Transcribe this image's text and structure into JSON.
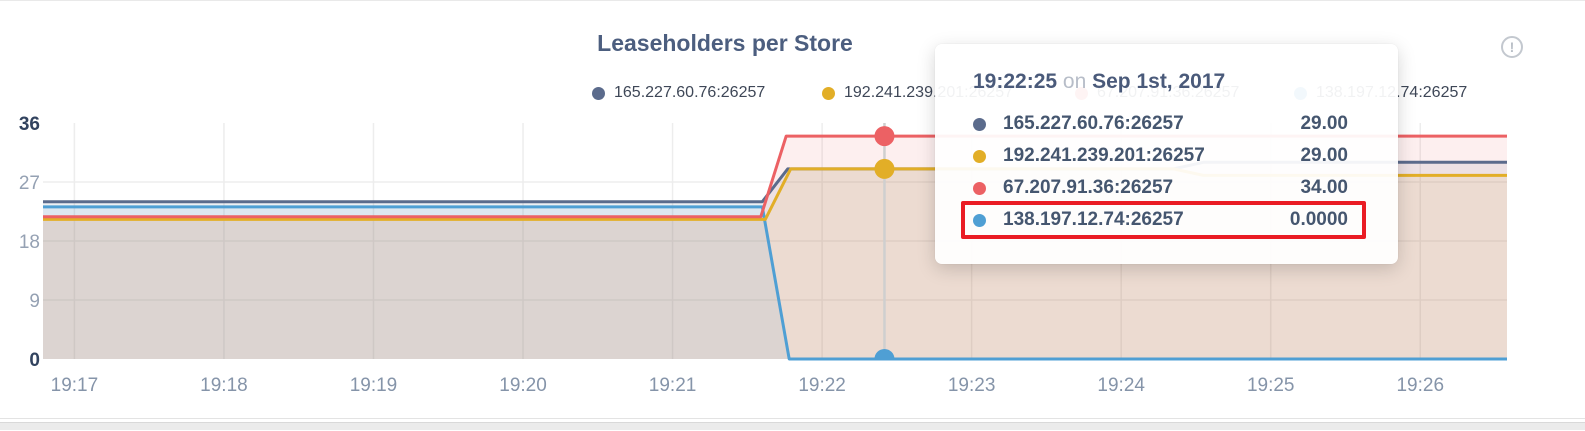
{
  "title": "Leaseholders per Store",
  "info_icon_glyph": "!",
  "chart_data": {
    "type": "area",
    "title": "Leaseholders per Store",
    "x_ticks": [
      "19:17",
      "19:18",
      "19:19",
      "19:20",
      "19:21",
      "19:22",
      "19:23",
      "19:24",
      "19:25",
      "19:26"
    ],
    "y_ticks": [
      36,
      27,
      18,
      9,
      0
    ],
    "y_grid": [
      27,
      18,
      9
    ],
    "ylim": [
      0,
      36
    ],
    "x_minutes_range": [
      16.79,
      26.58
    ],
    "grid_color": "#ededed",
    "series": [
      {
        "name": "165.227.60.76:26257",
        "color": "#5b6b8c",
        "points": [
          [
            16.79,
            24
          ],
          [
            21.6,
            24
          ],
          [
            21.77,
            29
          ],
          [
            24.35,
            29
          ],
          [
            24.55,
            30
          ],
          [
            26.58,
            30
          ]
        ]
      },
      {
        "name": "192.241.239.201:26257",
        "color": "#e2ae27",
        "points": [
          [
            16.79,
            21.3
          ],
          [
            21.62,
            21.3
          ],
          [
            21.79,
            29
          ],
          [
            24.35,
            29
          ],
          [
            24.55,
            28
          ],
          [
            26.58,
            28
          ]
        ]
      },
      {
        "name": "67.207.91.36:26257",
        "color": "#ec6164",
        "points": [
          [
            16.79,
            21.7
          ],
          [
            21.59,
            21.7
          ],
          [
            21.76,
            34
          ],
          [
            26.58,
            34
          ]
        ]
      },
      {
        "name": "138.197.12.74:26257",
        "color": "#4f9fd4",
        "points": [
          [
            16.79,
            23.2
          ],
          [
            21.6,
            23.2
          ],
          [
            21.78,
            0
          ],
          [
            26.58,
            0
          ]
        ]
      }
    ],
    "hover": {
      "t": 22.417,
      "guideline_color": "#cfcfcf",
      "points": [
        {
          "series": 0,
          "v": 29,
          "r": 7
        },
        {
          "series": 1,
          "v": 29,
          "r": 10
        },
        {
          "series": 2,
          "v": 34,
          "r": 10
        },
        {
          "series": 3,
          "v": 0,
          "r": 10
        }
      ]
    }
  },
  "tooltip": {
    "time": "19:22:25",
    "preposition": "on",
    "date": "Sep 1st, 2017",
    "highlight_color": "#ea1c24",
    "rows": [
      {
        "name": "165.227.60.76:26257",
        "value": "29.00",
        "highlighted": false
      },
      {
        "name": "192.241.239.201:26257",
        "value": "29.00",
        "highlighted": false
      },
      {
        "name": "67.207.91.36:26257",
        "value": "34.00",
        "highlighted": false
      },
      {
        "name": "138.197.12.74:26257",
        "value": "0.0000",
        "highlighted": true
      }
    ]
  }
}
